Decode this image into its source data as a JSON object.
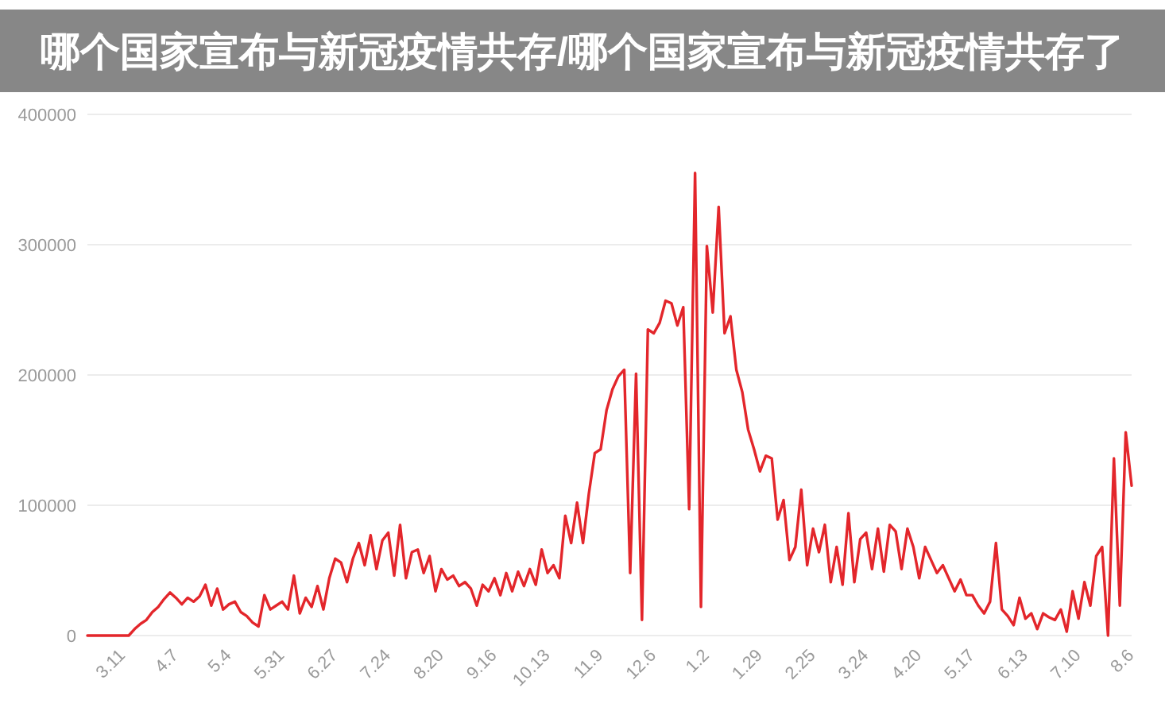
{
  "chart_data": {
    "type": "line",
    "title": "哪个国家宣布与新冠疫情共存/哪个国家宣布与新冠疫情共存了",
    "categories": [
      null,
      null,
      null,
      null,
      null,
      null,
      "3.11",
      null,
      null,
      null,
      null,
      null,
      null,
      null,
      null,
      "4.7",
      null,
      null,
      null,
      null,
      null,
      null,
      null,
      null,
      "5.4",
      null,
      null,
      null,
      null,
      null,
      null,
      null,
      null,
      "5.31",
      null,
      null,
      null,
      null,
      null,
      null,
      null,
      null,
      "6.27",
      null,
      null,
      null,
      null,
      null,
      null,
      null,
      null,
      "7.24",
      null,
      null,
      null,
      null,
      null,
      null,
      null,
      null,
      "8.20",
      null,
      null,
      null,
      null,
      null,
      null,
      null,
      null,
      "9.16",
      null,
      null,
      null,
      null,
      null,
      null,
      null,
      null,
      "10.13",
      null,
      null,
      null,
      null,
      null,
      null,
      null,
      null,
      "11.9",
      null,
      null,
      null,
      null,
      null,
      null,
      null,
      null,
      "12.6",
      null,
      null,
      null,
      null,
      null,
      null,
      null,
      null,
      "1.2",
      null,
      null,
      null,
      null,
      null,
      null,
      null,
      null,
      "1.29",
      null,
      null,
      null,
      null,
      null,
      null,
      null,
      null,
      "2.25",
      null,
      null,
      null,
      null,
      null,
      null,
      null,
      null,
      "3.24",
      null,
      null,
      null,
      null,
      null,
      null,
      null,
      null,
      "4.20",
      null,
      null,
      null,
      null,
      null,
      null,
      null,
      null,
      "5.17",
      null,
      null,
      null,
      null,
      null,
      null,
      null,
      null,
      "6.13",
      null,
      null,
      null,
      null,
      null,
      null,
      null,
      null,
      "7.10",
      null,
      null,
      null,
      null,
      null,
      null,
      null,
      null,
      "8.6"
    ],
    "series": [
      {
        "color": "#e3262b",
        "values": [
          0,
          0,
          0,
          0,
          0,
          0,
          0,
          0,
          5000,
          9000,
          12000,
          18000,
          22000,
          28000,
          33000,
          29000,
          24000,
          29000,
          26000,
          30000,
          39000,
          23000,
          36000,
          20000,
          24000,
          26000,
          18000,
          15000,
          10000,
          7000,
          31000,
          20000,
          23000,
          26000,
          20000,
          46000,
          17000,
          29000,
          22000,
          38000,
          20000,
          44000,
          59000,
          56000,
          41000,
          59000,
          71000,
          54000,
          77000,
          51000,
          73000,
          79000,
          46000,
          85000,
          44000,
          64000,
          66000,
          48000,
          61000,
          34000,
          51000,
          43000,
          46000,
          38000,
          41000,
          36000,
          23000,
          39000,
          34000,
          44000,
          31000,
          48000,
          34000,
          49000,
          38000,
          51000,
          39000,
          66000,
          48000,
          54000,
          44000,
          92000,
          71000,
          102000,
          71000,
          109000,
          140000,
          143000,
          173000,
          189000,
          199000,
          204000,
          48000,
          201000,
          12000,
          235000,
          232000,
          240000,
          257000,
          255000,
          238000,
          252000,
          97000,
          355000,
          22000,
          299000,
          248000,
          329000,
          232000,
          245000,
          204000,
          187000,
          158000,
          143000,
          126000,
          138000,
          136000,
          89000,
          104000,
          58000,
          68000,
          112000,
          54000,
          82000,
          64000,
          85000,
          41000,
          68000,
          39000,
          94000,
          41000,
          74000,
          79000,
          51000,
          82000,
          49000,
          85000,
          80000,
          51000,
          82000,
          68000,
          44000,
          68000,
          58000,
          48000,
          54000,
          44000,
          34000,
          43000,
          31000,
          31000,
          23000,
          17000,
          26000,
          71000,
          20000,
          15000,
          8000,
          29000,
          13000,
          17000,
          5000,
          17000,
          14000,
          12000,
          20000,
          3000,
          34000,
          13000,
          41000,
          23000,
          61000,
          68000,
          0,
          136000,
          23000,
          156000,
          115000
        ]
      }
    ],
    "ylim": [
      0,
      400000
    ],
    "yticks": [
      0,
      100000,
      200000,
      300000,
      400000
    ],
    "grid": "y"
  }
}
